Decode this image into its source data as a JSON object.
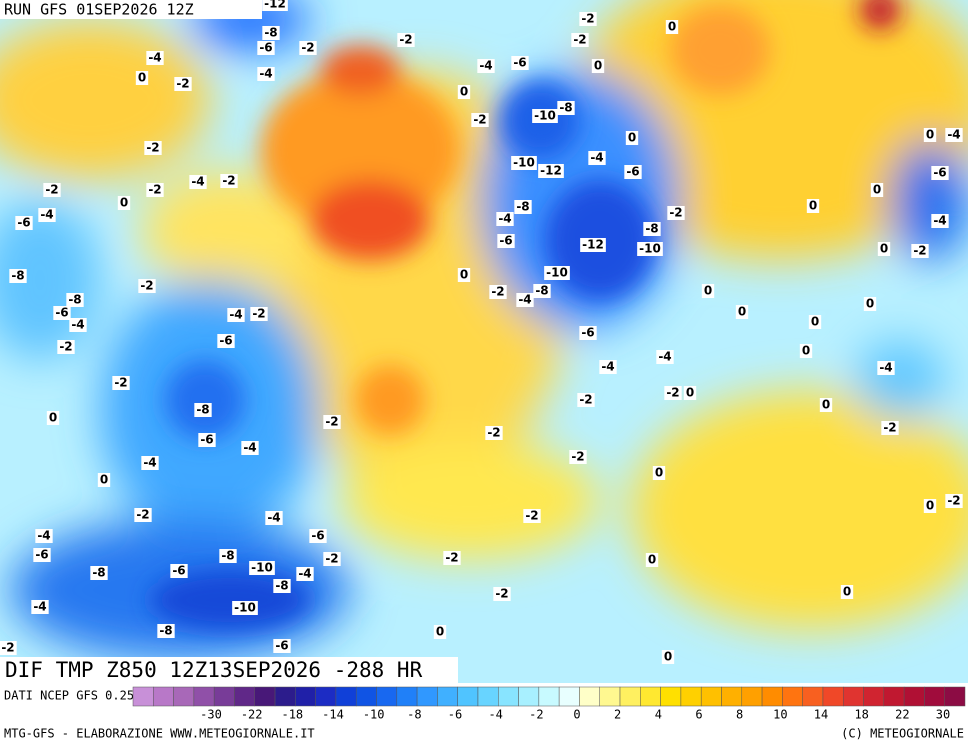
{
  "header": {
    "run": "RUN GFS 01SEP2026 12Z"
  },
  "map": {
    "field_label": "DIF TMP Z850 12Z13SEP2026 -288 HR",
    "contour_labels": [
      -12,
      -8,
      -6,
      -2,
      -4,
      -4,
      0,
      -2,
      -2,
      -2,
      -2,
      0,
      0,
      -4,
      -6,
      0,
      -8,
      -10,
      -2,
      0,
      0,
      -4,
      -2,
      -4,
      -6,
      -10,
      -12,
      -4,
      -2,
      -2,
      -2,
      0,
      0,
      0,
      -6,
      -8,
      -2,
      -4,
      -6,
      -4,
      -8,
      -4,
      -6,
      -12,
      -10,
      0,
      -2,
      -8,
      -10,
      0,
      -2,
      -8,
      -2,
      -4,
      -8,
      0,
      0,
      -6,
      -4,
      -4,
      -2,
      0,
      0,
      -6,
      -2,
      -6,
      0,
      -4,
      -4,
      -4,
      -2,
      -2,
      0,
      -8,
      -2,
      0,
      0,
      -2,
      -2,
      -6,
      -2,
      -4,
      -4,
      -2,
      0,
      0,
      0,
      -2,
      -2,
      -2,
      -4,
      -4,
      -6,
      -6,
      -8,
      -2,
      -2,
      0,
      -8,
      -6,
      -10,
      -4,
      -8,
      0,
      -2,
      -4,
      -10,
      -8,
      -6,
      0,
      -2,
      0
    ]
  },
  "legend": {
    "source": "DATI NCEP GFS 0.25°",
    "colors": [
      "#c890d8",
      "#b878c8",
      "#a868b8",
      "#9050a8",
      "#783c98",
      "#602888",
      "#481878",
      "#2c1c8c",
      "#2020a8",
      "#1c2cc4",
      "#1040d8",
      "#1054e4",
      "#1868f0",
      "#2080f8",
      "#3098ff",
      "#40b0ff",
      "#50c4ff",
      "#68d4ff",
      "#88e4ff",
      "#a8f0ff",
      "#c8faff",
      "#e8ffff",
      "#ffffc8",
      "#fff890",
      "#fff060",
      "#ffe830",
      "#ffe000",
      "#ffd000",
      "#ffc000",
      "#ffb000",
      "#ffa000",
      "#ff8c00",
      "#ff7410",
      "#f86020",
      "#f04828",
      "#e03430",
      "#d02430",
      "#c01830",
      "#b01034",
      "#a00c3c",
      "#8c0c44"
    ],
    "ticks": [
      -30,
      -22,
      -18,
      -14,
      -10,
      -8,
      -6,
      -4,
      -2,
      0,
      2,
      4,
      6,
      8,
      10,
      14,
      18,
      22,
      30
    ]
  },
  "footer": {
    "left": "MTG-GFS - ELABORAZIONE WWW.METEOGIORNALE.IT",
    "right": "(C) METEOGIORNALE"
  }
}
